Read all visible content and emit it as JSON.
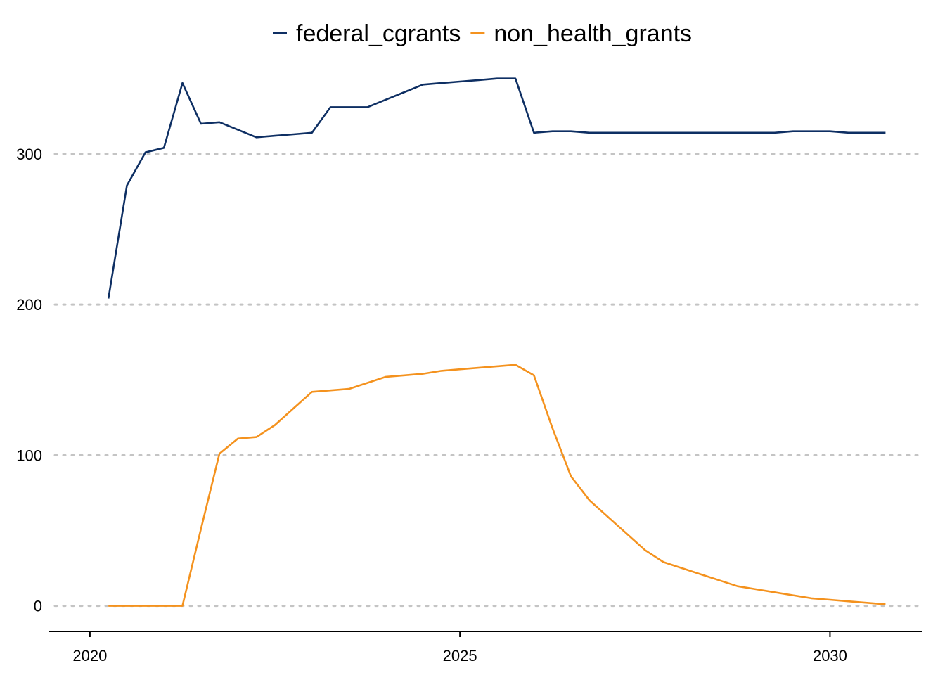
{
  "chart_data": {
    "type": "line",
    "title": "",
    "xlabel": "",
    "ylabel": "",
    "xlim": [
      2019.45,
      2031.25
    ],
    "ylim": [
      -17,
      362
    ],
    "x_ticks": [
      {
        "value": 2020,
        "label": "2020"
      },
      {
        "value": 2025,
        "label": "2025"
      },
      {
        "value": 2030,
        "label": "2030"
      }
    ],
    "y_ticks": [
      {
        "value": 0,
        "label": "0"
      },
      {
        "value": 100,
        "label": "100"
      },
      {
        "value": 200,
        "label": "200"
      },
      {
        "value": 300,
        "label": "300"
      }
    ],
    "grid": "horizontal-dotted",
    "legend": "top-center",
    "series": [
      {
        "name": "federal_cgrants",
        "color": "#0e2f63",
        "x": [
          2020.25,
          2020.5,
          2020.75,
          2021.0,
          2021.25,
          2021.5,
          2021.75,
          2022.0,
          2022.25,
          2022.5,
          2022.75,
          2023.0,
          2023.25,
          2023.5,
          2023.75,
          2024.0,
          2024.25,
          2024.5,
          2024.75,
          2025.0,
          2025.25,
          2025.5,
          2025.75,
          2026.0,
          2026.25,
          2026.5,
          2026.75,
          2027.0,
          2027.25,
          2027.5,
          2027.75,
          2028.0,
          2028.25,
          2028.5,
          2028.75,
          2029.0,
          2029.25,
          2029.5,
          2029.75,
          2030.0,
          2030.25,
          2030.5,
          2030.75
        ],
        "values": [
          204,
          279,
          301,
          304,
          347,
          320,
          321,
          316,
          311,
          312,
          313,
          314,
          331,
          331,
          331,
          336,
          341,
          346,
          347,
          348,
          349,
          350,
          350,
          314,
          315,
          315,
          314,
          314,
          314,
          314,
          314,
          314,
          314,
          314,
          314,
          314,
          314,
          315,
          315,
          315,
          314,
          314,
          314
        ]
      },
      {
        "name": "non_health_grants",
        "color": "#f4921e",
        "x": [
          2020.25,
          2020.5,
          2020.75,
          2021.0,
          2021.25,
          2021.5,
          2021.75,
          2022.0,
          2022.25,
          2022.5,
          2022.75,
          2023.0,
          2023.25,
          2023.5,
          2023.75,
          2024.0,
          2024.25,
          2024.5,
          2024.75,
          2025.0,
          2025.25,
          2025.5,
          2025.75,
          2026.0,
          2026.25,
          2026.5,
          2026.75,
          2027.0,
          2027.25,
          2027.5,
          2027.75,
          2028.0,
          2028.25,
          2028.5,
          2028.75,
          2029.0,
          2029.25,
          2029.5,
          2029.75,
          2030.0,
          2030.25,
          2030.5,
          2030.75
        ],
        "values": [
          0,
          0,
          0,
          0,
          0,
          51,
          101,
          111,
          112,
          120,
          131,
          142,
          143,
          144,
          148,
          152,
          153,
          154,
          156,
          157,
          158,
          159,
          160,
          153,
          118,
          86,
          70,
          59,
          48,
          37,
          29,
          25,
          21,
          17,
          13,
          11,
          9,
          7,
          5,
          4,
          3,
          2,
          1
        ]
      }
    ]
  }
}
